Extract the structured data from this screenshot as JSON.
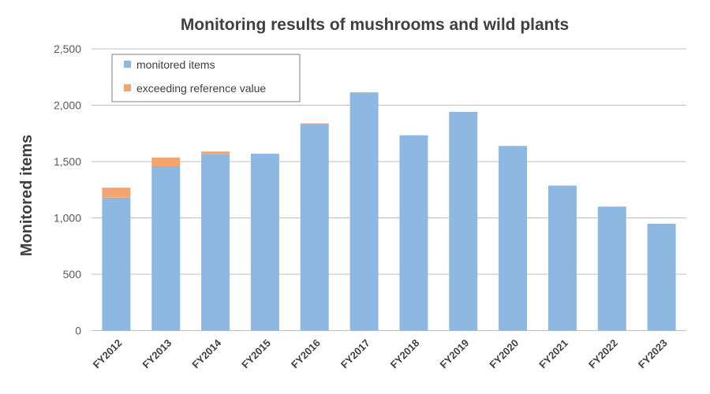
{
  "chart_data": {
    "type": "bar",
    "stacked": true,
    "title": "Monitoring results of mushrooms and wild plants",
    "xlabel": "",
    "ylabel": "Monitored items",
    "ylim": [
      0,
      2500
    ],
    "yticks": [
      0,
      500,
      1000,
      1500,
      2000,
      2500
    ],
    "ytick_labels": [
      "0",
      "500",
      "1,000",
      "1,500",
      "2,000",
      "2,500"
    ],
    "grid": true,
    "legend_position": "top-left",
    "categories": [
      "FY2012",
      "FY2013",
      "FY2014",
      "FY2015",
      "FY2016",
      "FY2017",
      "FY2018",
      "FY2019",
      "FY2020",
      "FY2021",
      "FY2022",
      "FY2023"
    ],
    "series": [
      {
        "name": "monitored items",
        "color": "#8db8e2",
        "values": [
          1180,
          1458,
          1565,
          1567,
          1832,
          2112,
          1732,
          1941,
          1638,
          1287,
          1100,
          948
        ]
      },
      {
        "name": "exceeding reference value",
        "color": "#f4a46e",
        "values": [
          88,
          77,
          24,
          3,
          7,
          2,
          2,
          0,
          0,
          0,
          0,
          0
        ]
      }
    ]
  }
}
